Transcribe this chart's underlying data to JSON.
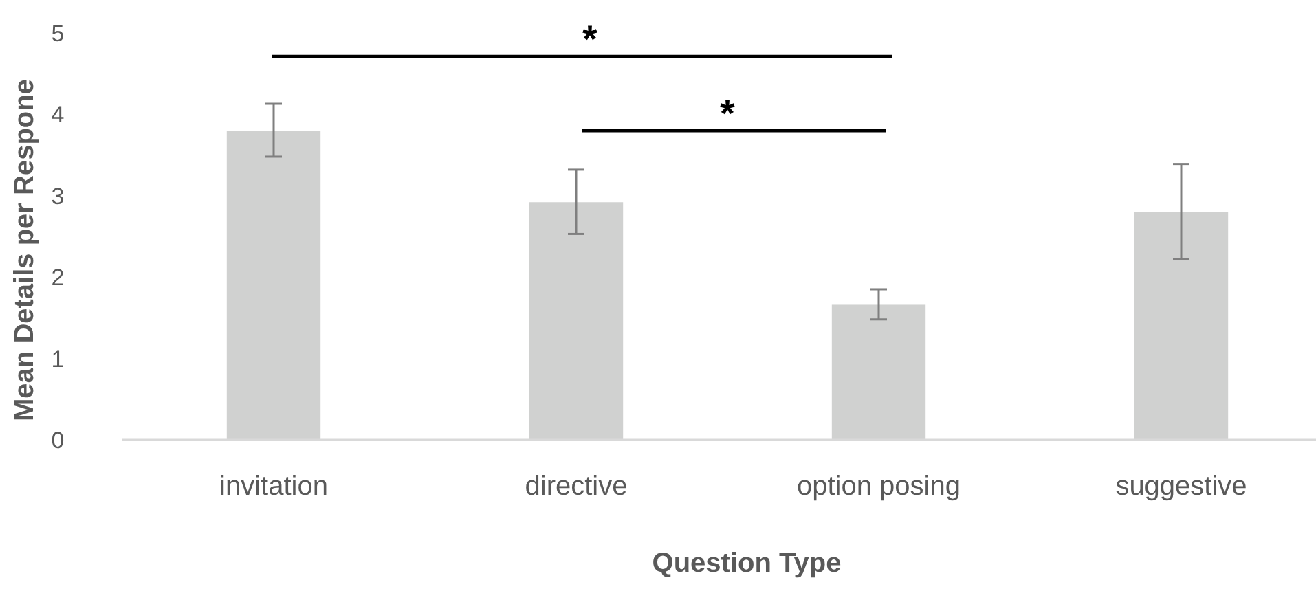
{
  "chart_data": {
    "type": "bar",
    "xlabel": "Question Type",
    "ylabel": "Mean Details per Respone",
    "categories": [
      "invitation",
      "directive",
      "option posing",
      "suggestive"
    ],
    "values": [
      3.8,
      2.92,
      1.66,
      2.8
    ],
    "errors": [
      [
        3.48,
        4.13
      ],
      [
        2.53,
        3.32
      ],
      [
        1.48,
        1.85
      ],
      [
        2.22,
        3.39
      ]
    ],
    "color": "#d0d1d0",
    "ylim": [
      0,
      5
    ],
    "yticks": [
      0,
      1,
      2,
      3,
      4,
      5
    ],
    "grid": false,
    "annotations": [
      "*",
      "*"
    ]
  }
}
